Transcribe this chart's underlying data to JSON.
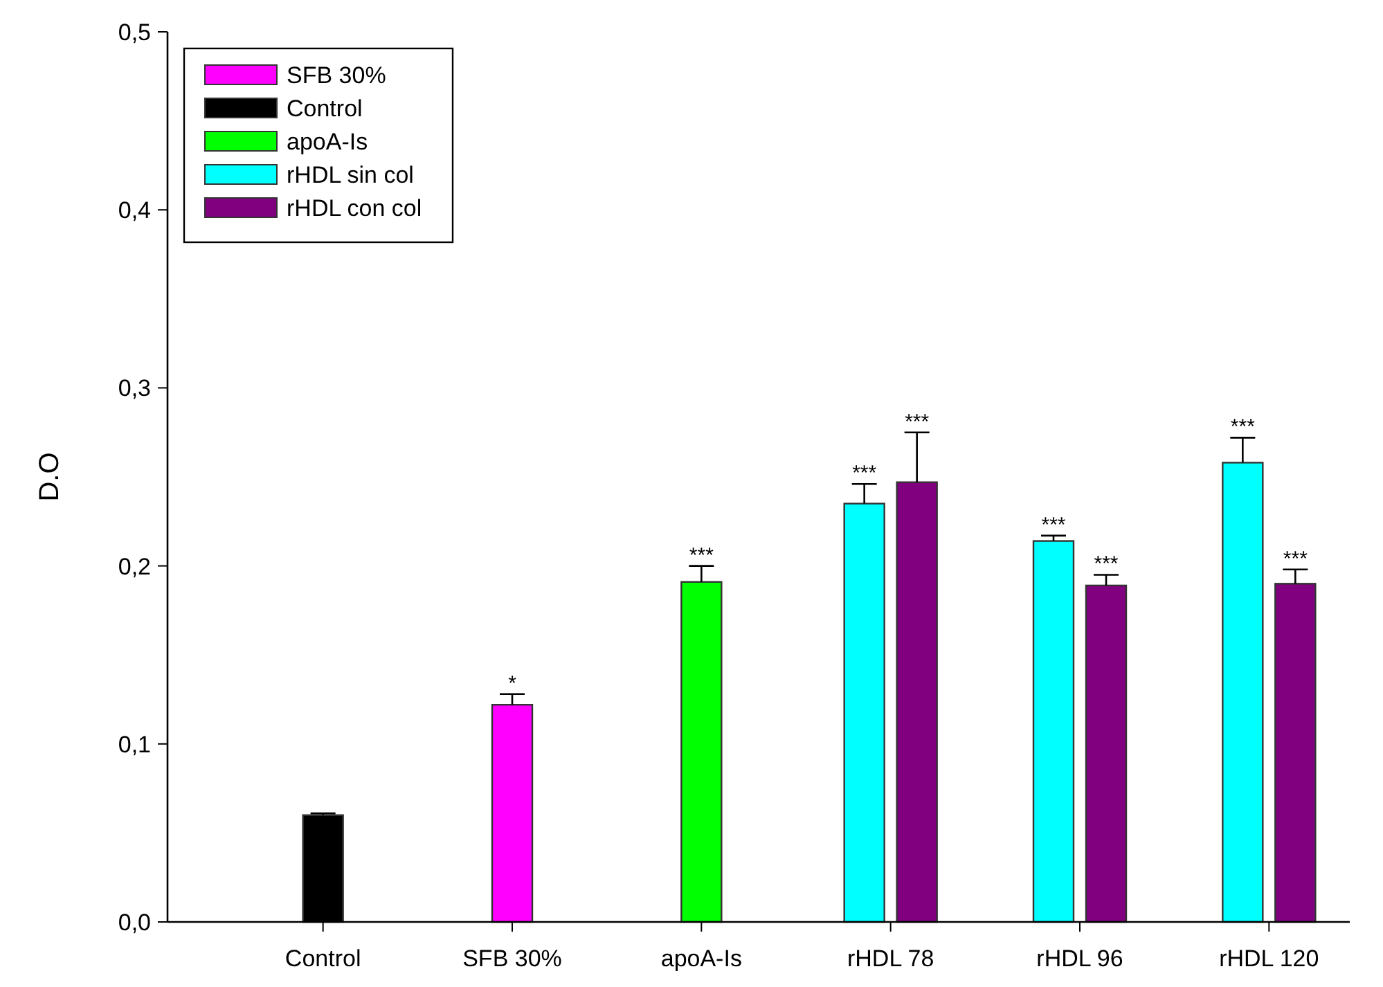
{
  "chart_data": {
    "type": "bar",
    "ylabel": "D.O",
    "categories": [
      "Control",
      "SFB 30%",
      "apoA-Is",
      "rHDL 78",
      "rHDL 96",
      "rHDL 120"
    ],
    "series": [
      {
        "name": "SFB 30%",
        "color": "#ff00ff",
        "values": [
          null,
          0.122,
          null,
          null,
          null,
          null
        ],
        "errors": [
          null,
          0.006,
          null,
          null,
          null,
          null
        ],
        "value_labels": [
          null,
          "*",
          null,
          null,
          null,
          null
        ]
      },
      {
        "name": "Control",
        "color": "#000000",
        "values": [
          0.06,
          null,
          null,
          null,
          null,
          null
        ],
        "errors": [
          0.001,
          null,
          null,
          null,
          null,
          null
        ]
      },
      {
        "name": "apoA-Is",
        "color": "#00ff00",
        "values": [
          null,
          null,
          0.191,
          null,
          null,
          null
        ],
        "errors": [
          null,
          null,
          0.009,
          null,
          null,
          null
        ],
        "value_labels": [
          null,
          null,
          "***",
          null,
          null,
          null
        ]
      },
      {
        "name": "rHDL sin col",
        "color": "#00ffff",
        "values": [
          null,
          null,
          null,
          0.235,
          0.214,
          0.258
        ],
        "errors": [
          null,
          null,
          null,
          0.011,
          0.003,
          0.014
        ],
        "value_labels": [
          null,
          null,
          null,
          "***",
          "***",
          "***"
        ]
      },
      {
        "name": "rHDL con col",
        "color": "#800080",
        "values": [
          null,
          null,
          null,
          0.247,
          0.189,
          0.19
        ],
        "errors": [
          null,
          null,
          null,
          0.028,
          0.006,
          0.008
        ],
        "value_labels": [
          null,
          null,
          null,
          "***",
          "***",
          "***"
        ]
      }
    ],
    "ylim": [
      0,
      0.5
    ],
    "yticks": [
      {
        "value": 0,
        "label": "0,0"
      },
      {
        "value": 0.1,
        "label": "0,1"
      },
      {
        "value": 0.2,
        "label": "0,2"
      },
      {
        "value": 0.3,
        "label": "0,3"
      },
      {
        "value": 0.4,
        "label": "0,4"
      },
      {
        "value": 0.5,
        "label": "0,5"
      }
    ],
    "grid": false,
    "legend": "top left"
  }
}
